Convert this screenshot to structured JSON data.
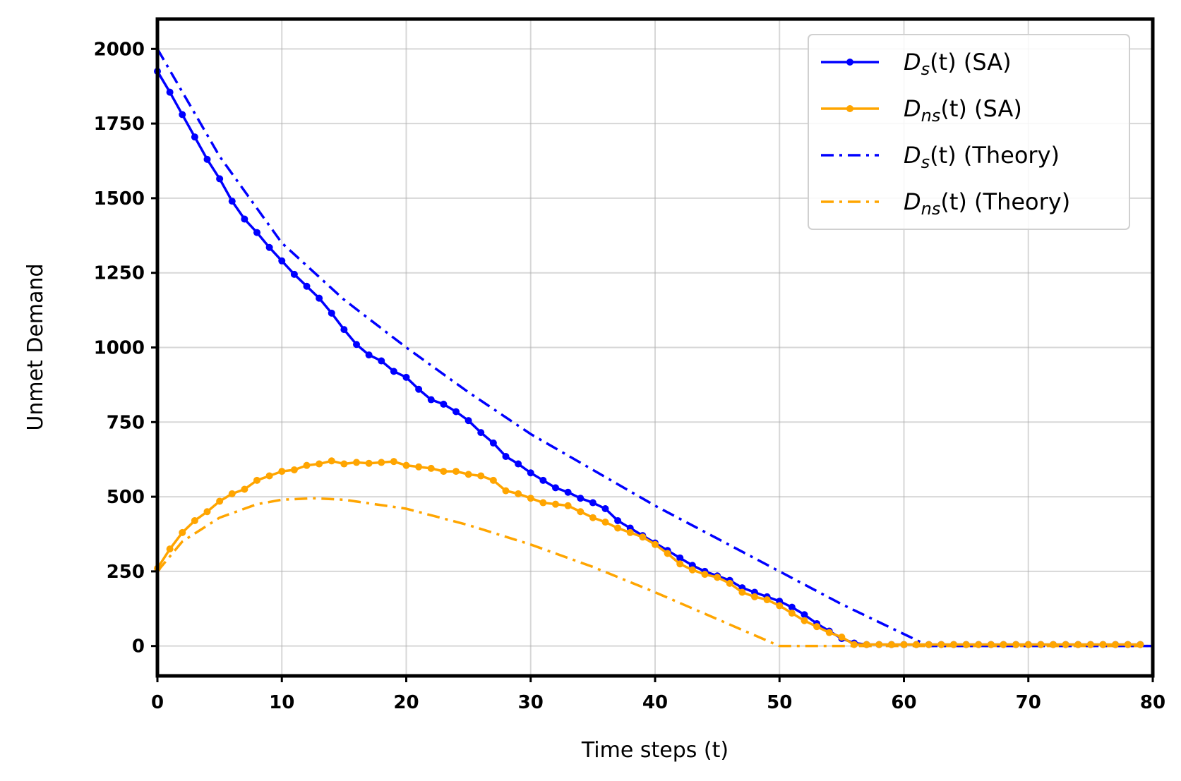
{
  "chart_data": {
    "type": "line",
    "title": "",
    "xlabel": "Time steps (t)",
    "ylabel": "Unmet Demand",
    "xlim": [
      0,
      80
    ],
    "ylim": [
      -100,
      2100
    ],
    "xticks": [
      0,
      10,
      20,
      30,
      40,
      50,
      60,
      70,
      80
    ],
    "yticks": [
      0,
      250,
      500,
      750,
      1000,
      1250,
      1500,
      1750,
      2000
    ],
    "grid": true,
    "legend_position": "top-right",
    "series": [
      {
        "name": "Ds(t) (SA)",
        "legend_main": "D",
        "legend_sub": "s",
        "legend_rest": "(t) (SA)",
        "color": "#0000ff",
        "style": "solid",
        "markers": true,
        "x": [
          0,
          1,
          2,
          3,
          4,
          5,
          6,
          7,
          8,
          9,
          10,
          11,
          12,
          13,
          14,
          15,
          16,
          17,
          18,
          19,
          20,
          21,
          22,
          23,
          24,
          25,
          26,
          27,
          28,
          29,
          30,
          31,
          32,
          33,
          34,
          35,
          36,
          37,
          38,
          39,
          40,
          41,
          42,
          43,
          44,
          45,
          46,
          47,
          48,
          49,
          50,
          51,
          52,
          53,
          54,
          55,
          56,
          57,
          58,
          59,
          60,
          61,
          62,
          63,
          64,
          65,
          66,
          67,
          68,
          69,
          70,
          71,
          72,
          73,
          74,
          75,
          76,
          77,
          78,
          79
        ],
        "y": [
          1925,
          1855,
          1780,
          1705,
          1630,
          1565,
          1490,
          1430,
          1385,
          1335,
          1290,
          1245,
          1205,
          1165,
          1115,
          1060,
          1010,
          975,
          955,
          920,
          900,
          860,
          825,
          810,
          785,
          755,
          715,
          680,
          635,
          610,
          580,
          555,
          530,
          515,
          495,
          480,
          460,
          420,
          395,
          370,
          345,
          320,
          295,
          270,
          250,
          235,
          220,
          195,
          180,
          165,
          150,
          130,
          105,
          75,
          50,
          25,
          10,
          5,
          5,
          5,
          5,
          5,
          5,
          5,
          5,
          5,
          5,
          5,
          5,
          5,
          5,
          5,
          5,
          5,
          5,
          5,
          5,
          5,
          5,
          5
        ]
      },
      {
        "name": "Dns(t) (SA)",
        "legend_main": "D",
        "legend_sub": "ns",
        "legend_rest": "(t) (SA)",
        "color": "#ffa500",
        "style": "solid",
        "markers": true,
        "x": [
          0,
          1,
          2,
          3,
          4,
          5,
          6,
          7,
          8,
          9,
          10,
          11,
          12,
          13,
          14,
          15,
          16,
          17,
          18,
          19,
          20,
          21,
          22,
          23,
          24,
          25,
          26,
          27,
          28,
          29,
          30,
          31,
          32,
          33,
          34,
          35,
          36,
          37,
          38,
          39,
          40,
          41,
          42,
          43,
          44,
          45,
          46,
          47,
          48,
          49,
          50,
          51,
          52,
          53,
          54,
          55,
          56,
          57,
          58,
          59,
          60,
          61,
          62,
          63,
          64,
          65,
          66,
          67,
          68,
          69,
          70,
          71,
          72,
          73,
          74,
          75,
          76,
          77,
          78,
          79
        ],
        "y": [
          260,
          325,
          380,
          420,
          450,
          485,
          510,
          525,
          555,
          570,
          585,
          590,
          605,
          610,
          620,
          610,
          615,
          612,
          615,
          618,
          605,
          600,
          595,
          585,
          585,
          575,
          570,
          555,
          520,
          510,
          495,
          480,
          475,
          470,
          450,
          430,
          415,
          395,
          380,
          365,
          340,
          310,
          275,
          255,
          240,
          230,
          210,
          180,
          165,
          155,
          135,
          110,
          85,
          65,
          45,
          30,
          5,
          5,
          5,
          5,
          5,
          5,
          5,
          5,
          5,
          5,
          5,
          5,
          5,
          5,
          5,
          5,
          5,
          5,
          5,
          5,
          5,
          5,
          5,
          5
        ]
      },
      {
        "name": "Ds(t) (Theory)",
        "legend_main": "D",
        "legend_sub": "s",
        "legend_rest": "(t) (Theory)",
        "color": "#0000ff",
        "style": "dashdot",
        "markers": false,
        "x": [
          0,
          5,
          10,
          15,
          20,
          25,
          30,
          35,
          40,
          45,
          50,
          55,
          60,
          62,
          65,
          70,
          75,
          80
        ],
        "y": [
          2000,
          1640,
          1350,
          1160,
          1000,
          850,
          710,
          590,
          470,
          360,
          250,
          140,
          40,
          0,
          0,
          0,
          0,
          0
        ]
      },
      {
        "name": "Dns(t) (Theory)",
        "legend_main": "D",
        "legend_sub": "ns",
        "legend_rest": "(t) (Theory)",
        "color": "#ffa500",
        "style": "dashdot",
        "markers": false,
        "x": [
          0,
          2,
          5,
          8,
          10,
          12.5,
          15,
          20,
          25,
          30,
          35,
          40,
          45,
          50,
          55,
          60,
          65,
          70,
          75,
          80
        ],
        "y": [
          250,
          350,
          430,
          475,
          490,
          495,
          490,
          460,
          405,
          340,
          265,
          180,
          90,
          0,
          0,
          0,
          0,
          0,
          0,
          0
        ]
      }
    ]
  }
}
